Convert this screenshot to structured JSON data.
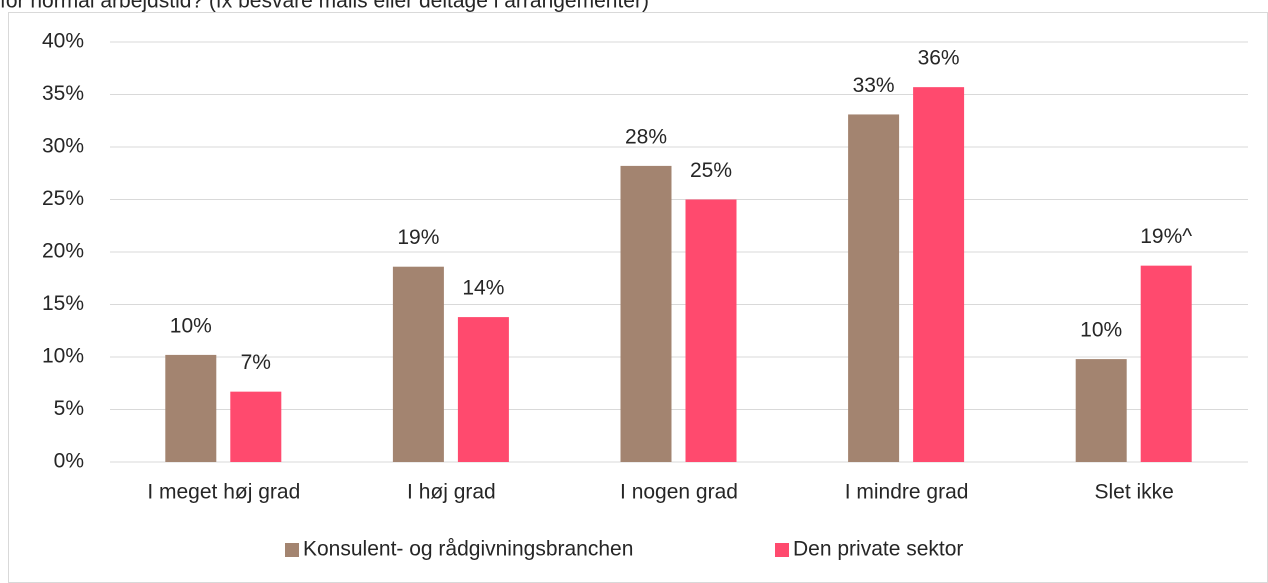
{
  "chart_data": {
    "type": "bar",
    "title": "for normal arbejdstid? (fx besvare mails eller deltage i arrangementer)",
    "categories": [
      "I meget høj grad",
      "I høj grad",
      "I nogen grad",
      "I mindre grad",
      "Slet ikke"
    ],
    "series": [
      {
        "name": "Konsulent- og rådgivningsbranchen",
        "color": "#a38470",
        "values": [
          10.2,
          18.6,
          28.2,
          33.1,
          9.8
        ],
        "value_labels": [
          "10%",
          "19%",
          "28%",
          "33%",
          "10%"
        ]
      },
      {
        "name": "Den private sektor",
        "color": "#ff4a6e",
        "values": [
          6.7,
          13.8,
          25.0,
          35.7,
          18.7
        ],
        "value_labels": [
          "7%",
          "14%",
          "25%",
          "36%",
          "19%^"
        ]
      }
    ],
    "ylim": [
      0,
      40
    ],
    "yticks": [
      {
        "value": 0,
        "label": "0%"
      },
      {
        "value": 5,
        "label": "5%"
      },
      {
        "value": 10,
        "label": "10%"
      },
      {
        "value": 15,
        "label": "15%"
      },
      {
        "value": 20,
        "label": "20%"
      },
      {
        "value": 25,
        "label": "25%"
      },
      {
        "value": 30,
        "label": "30%"
      },
      {
        "value": 35,
        "label": "35%"
      },
      {
        "value": 40,
        "label": "40%"
      }
    ],
    "grid": true,
    "legend": "bottom"
  }
}
